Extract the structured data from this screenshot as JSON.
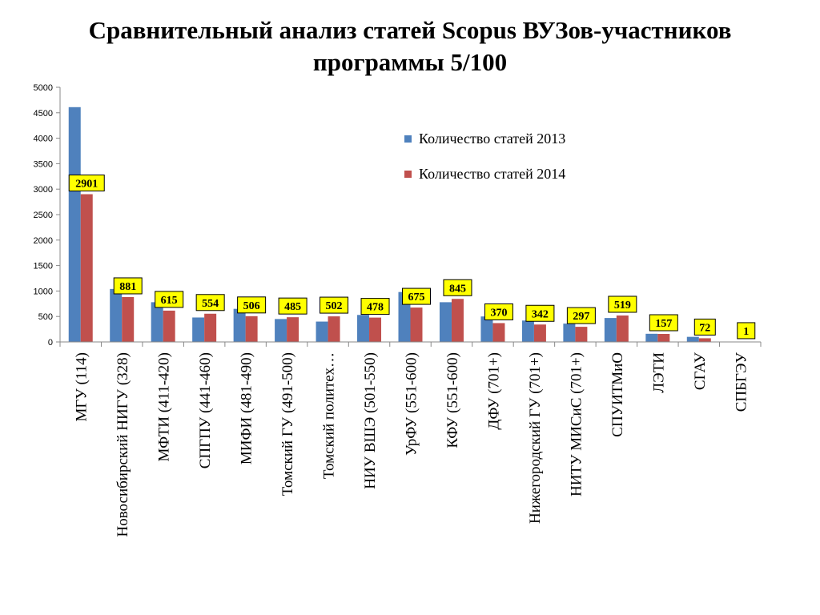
{
  "title_lines": [
    "Сравнительный анализ статей Scopus ВУЗов-участников",
    "программы 5/100"
  ],
  "chart_data": {
    "type": "bar",
    "categories": [
      "МГУ (114)",
      "Новосибирский НИГУ (328)",
      "МФТИ  (411-420)",
      "СПГПУ (441-460)",
      "МИФИ (481-490)",
      "Томский ГУ (491-500)",
      "Томский политех…",
      "НИУ ВШЭ (501-550)",
      "УрФУ (551-600)",
      "КФУ (551-600)",
      "ДФУ (701+)",
      "Нижегородский ГУ (701+)",
      "НИТУ МИСиС (701+)",
      "СПУИТМиО",
      "ЛЭТИ",
      "СГАУ",
      "СПБГЭУ"
    ],
    "series": [
      {
        "name": "Количество статей 2013",
        "color": "#4F81BD",
        "values": [
          4610,
          1040,
          780,
          480,
          650,
          450,
          400,
          530,
          980,
          780,
          500,
          420,
          360,
          470,
          160,
          100,
          0
        ]
      },
      {
        "name": "Количество статей 2014",
        "color": "#C0504D",
        "values": [
          2901,
          881,
          615,
          554,
          506,
          485,
          502,
          478,
          675,
          845,
          370,
          342,
          297,
          519,
          157,
          72,
          1
        ],
        "data_labels": [
          "2901",
          "881",
          "615",
          "554",
          "506",
          "485",
          "502",
          "478",
          "675",
          "845",
          "370",
          "342",
          "297",
          "519",
          "157",
          "72",
          "1"
        ]
      }
    ],
    "y_ticks": [
      "0",
      "500",
      "1000",
      "1500",
      "2000",
      "2500",
      "3000",
      "3500",
      "4000",
      "4500",
      "5000"
    ],
    "ylim": [
      0,
      5000
    ],
    "legend_position": "top-right",
    "data_label_color": "#FFFF00",
    "grid": false
  }
}
